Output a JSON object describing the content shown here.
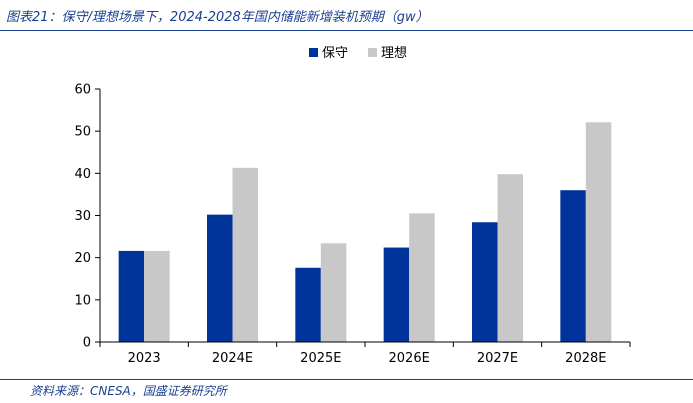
{
  "header": {
    "title": "图表21：保守/理想场景下，2024-2028年国内储能新增装机预期（gw）"
  },
  "footer": {
    "source": "资料来源：CNESA，国盛证券研究所"
  },
  "colors": {
    "series1": "#003399",
    "series2": "#c8c8c8",
    "axis": "#000000"
  },
  "chart_data": {
    "type": "bar",
    "title": "",
    "xlabel": "",
    "ylabel": "",
    "categories": [
      "2023",
      "2024E",
      "2025E",
      "2026E",
      "2027E",
      "2028E"
    ],
    "series": [
      {
        "name": "保守",
        "values": [
          21.6,
          30.2,
          17.6,
          22.4,
          28.4,
          36.0
        ]
      },
      {
        "name": "理想",
        "values": [
          21.6,
          41.3,
          23.4,
          30.5,
          39.8,
          52.1
        ]
      }
    ],
    "ylim": [
      0,
      60
    ],
    "yticks": [
      0,
      10,
      20,
      30,
      40,
      50,
      60
    ],
    "grid": false,
    "legend": "top-center"
  }
}
